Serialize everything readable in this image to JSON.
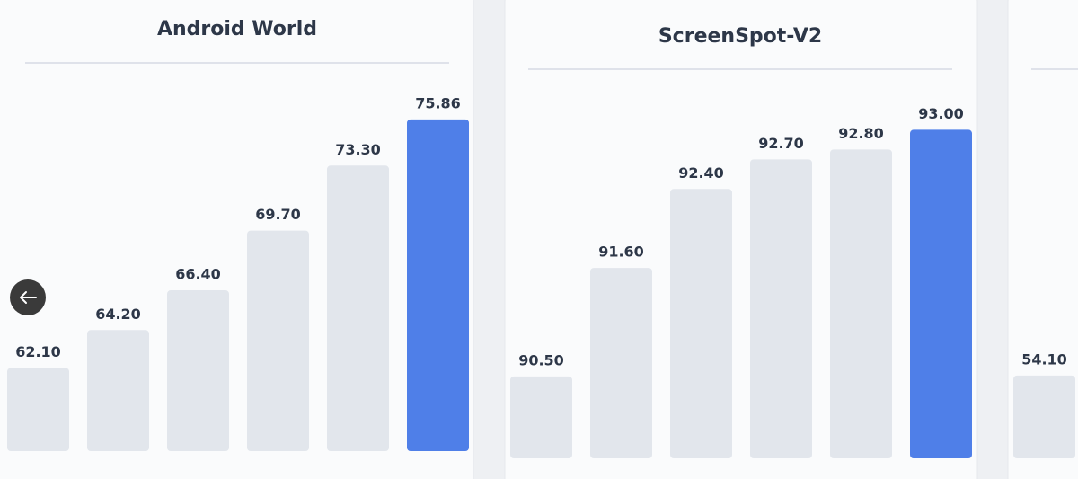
{
  "chart_data": [
    {
      "type": "bar",
      "title": "Android World",
      "categories": [
        null,
        null,
        null,
        null,
        null,
        null
      ],
      "values": [
        62.1,
        64.2,
        66.4,
        69.7,
        73.3,
        75.86
      ],
      "value_labels": [
        "62.10",
        "64.20",
        "66.40",
        "69.70",
        "73.30",
        "75.86"
      ],
      "colors": [
        "#e2e6ec",
        "#e2e6ec",
        "#e2e6ec",
        "#e2e6ec",
        "#e2e6ec",
        "#4f7fe8"
      ],
      "ylim": [
        57.5,
        76
      ]
    },
    {
      "type": "bar",
      "title": "ScreenSpot-V2",
      "categories": [
        null,
        null,
        null,
        null,
        null,
        null
      ],
      "values": [
        90.5,
        91.6,
        92.4,
        92.7,
        92.8,
        93.0
      ],
      "value_labels": [
        "90.50",
        "91.60",
        "92.40",
        "92.70",
        "92.80",
        "93.00"
      ],
      "colors": [
        "#e2e6ec",
        "#e2e6ec",
        "#e2e6ec",
        "#e2e6ec",
        "#e2e6ec",
        "#4f7fe8"
      ],
      "ylim": [
        89.67,
        93.04
      ]
    },
    {
      "type": "bar",
      "categories": [
        null
      ],
      "values": [
        54.1
      ],
      "value_labels": [
        "54.10"
      ],
      "colors": [
        "#e2e6ec"
      ],
      "ylim": [
        53,
        57.42
      ]
    }
  ]
}
